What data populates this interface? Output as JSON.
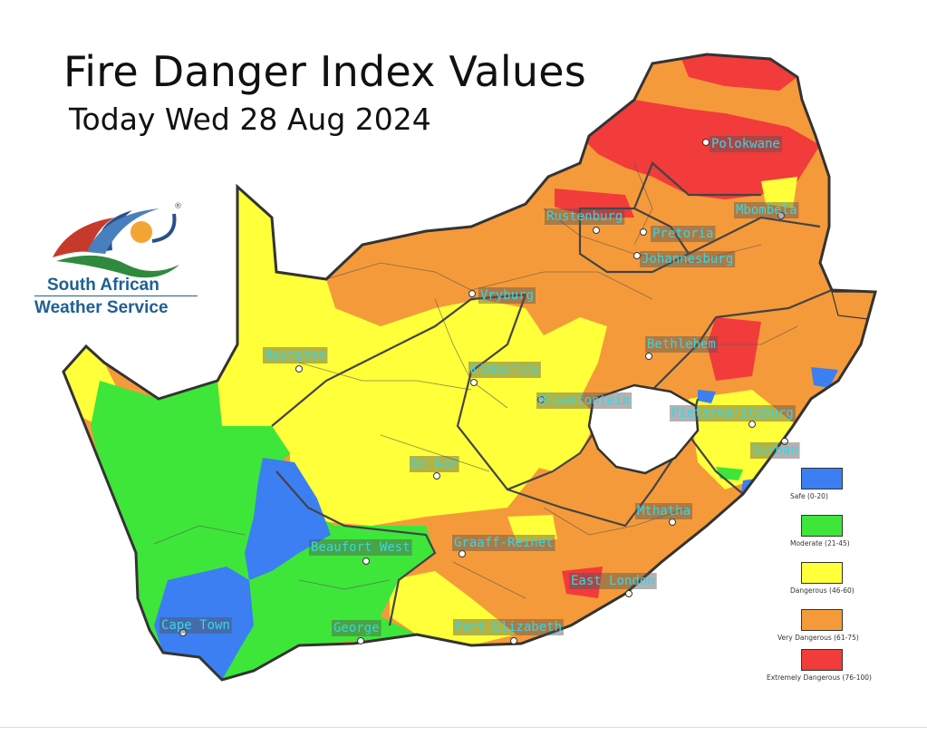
{
  "header": {
    "title": "Fire Danger Index Values",
    "subtitle": "Today Wed 28 Aug 2024"
  },
  "logo": {
    "line1": "South African",
    "line2": "Weather Service",
    "trademark": "®"
  },
  "cities": [
    {
      "name": "Polokwane"
    },
    {
      "name": "Mbombela"
    },
    {
      "name": "Rustenburg"
    },
    {
      "name": "Pretoria"
    },
    {
      "name": "Johannesburg"
    },
    {
      "name": "Vryburg"
    },
    {
      "name": "Upington"
    },
    {
      "name": "Bethlehem"
    },
    {
      "name": "Kimberley"
    },
    {
      "name": "Bloemfontein"
    },
    {
      "name": "Pietermaritzburg"
    },
    {
      "name": "Durban"
    },
    {
      "name": "De Aar"
    },
    {
      "name": "Mthatha"
    },
    {
      "name": "Beaufort West"
    },
    {
      "name": "Graaff-Reinet"
    },
    {
      "name": "East London"
    },
    {
      "name": "Cape Town"
    },
    {
      "name": "George"
    },
    {
      "name": "Port Elizabeth"
    }
  ],
  "legend": [
    {
      "label": "Safe (0-20)",
      "color": "#3b7ff2"
    },
    {
      "label": "Moderate (21-45)",
      "color": "#3ee63a"
    },
    {
      "label": "Dangerous (46-60)",
      "color": "#ffff3a"
    },
    {
      "label": "Very Dangerous (61-75)",
      "color": "#f59a3a"
    },
    {
      "label": "Extremely Dangerous (76-100)",
      "color": "#f23b3b"
    }
  ]
}
